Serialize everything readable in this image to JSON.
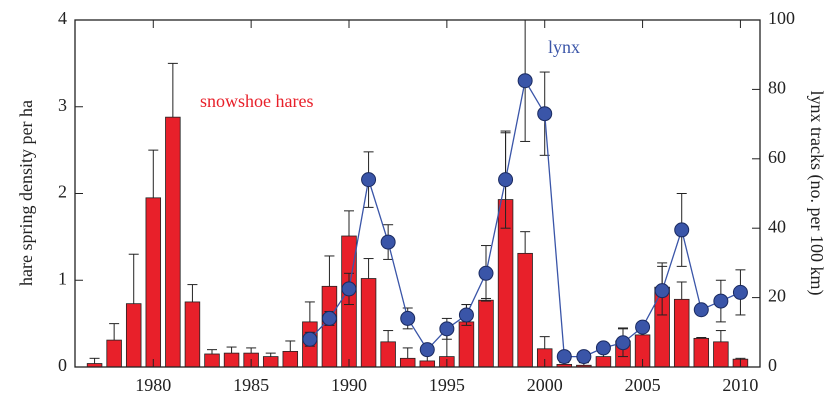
{
  "chart_data": {
    "type": "bar-line",
    "ylabel": "hare spring density per ha",
    "y2label": "lynx tracks (no. per 100 km)",
    "x": [
      1977,
      1978,
      1979,
      1980,
      1981,
      1982,
      1983,
      1984,
      1985,
      1986,
      1987,
      1988,
      1989,
      1990,
      1991,
      1992,
      1993,
      1994,
      1995,
      1996,
      1997,
      1998,
      1999,
      2000,
      2001,
      2002,
      2003,
      2004,
      2005,
      2006,
      2007,
      2008,
      2009,
      2010
    ],
    "xlim": [
      1976,
      2011
    ],
    "xticks": [
      1980,
      1985,
      1990,
      1995,
      2000,
      2005,
      2010
    ],
    "ylim": [
      0,
      4
    ],
    "yticks": [
      0,
      1,
      2,
      3,
      4
    ],
    "y2lim": [
      0,
      100
    ],
    "y2ticks": [
      0,
      20,
      40,
      60,
      80,
      100
    ],
    "series": [
      {
        "name": "snowshoe hares",
        "type": "bar",
        "color": "#e8202a",
        "values": [
          0.04,
          0.31,
          0.73,
          1.95,
          2.88,
          0.75,
          0.15,
          0.16,
          0.16,
          0.12,
          0.18,
          0.52,
          0.93,
          1.51,
          1.02,
          0.29,
          0.1,
          0.07,
          0.12,
          0.52,
          0.77,
          1.93,
          1.31,
          0.21,
          0.03,
          0.02,
          0.12,
          0.3,
          0.37,
          0.92,
          0.78,
          0.33,
          0.29,
          0.09
        ],
        "errors": [
          0.06,
          0.19,
          0.57,
          0.55,
          0.62,
          0.2,
          0.05,
          0.07,
          0.06,
          0.04,
          0.12,
          0.23,
          0.35,
          0.29,
          0.23,
          0.13,
          0.12,
          0.13,
          0.28,
          0.2,
          0.02,
          0.77,
          0.25,
          0.14,
          0.02,
          0.03,
          0.06,
          0.15,
          0.08,
          0.28,
          0.2,
          0.01,
          0.13,
          0.01
        ]
      },
      {
        "name": "lynx",
        "type": "line",
        "axis": "y2",
        "color": "#3a55a8",
        "values": [
          null,
          null,
          null,
          null,
          null,
          null,
          null,
          null,
          null,
          null,
          null,
          8,
          14,
          22.5,
          54,
          36,
          14,
          5,
          11,
          15,
          27,
          54,
          82.5,
          73,
          3,
          3,
          5.5,
          7,
          11.5,
          22,
          39.5,
          16.5,
          19,
          21.5
        ],
        "errors": [
          null,
          null,
          null,
          null,
          null,
          null,
          null,
          null,
          null,
          null,
          null,
          2,
          2,
          4.5,
          8,
          5,
          3,
          1,
          3,
          3,
          8,
          14,
          17.5,
          12,
          0.5,
          0.5,
          1.5,
          4,
          1,
          7,
          10.5,
          1,
          6,
          6.5
        ]
      }
    ]
  }
}
